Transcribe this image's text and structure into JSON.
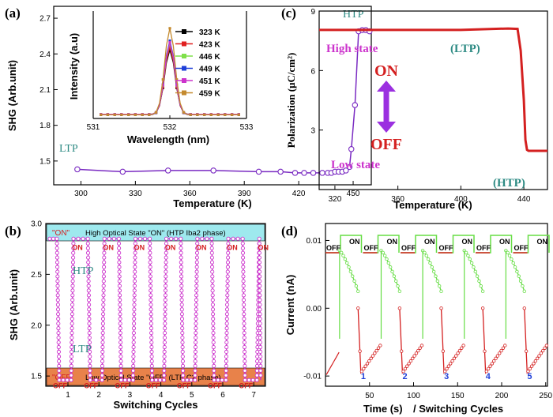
{
  "colors": {
    "ltp_htp_text": "#2e8b84",
    "magenta": "#cc33cc",
    "violet": "#7a2bc2",
    "red": "#d42020",
    "green": "#66dd44",
    "blue": "#1f3fd8",
    "banner_on": "#9ee9ee",
    "banner_off": "#e8824a"
  },
  "chart_data": [
    {
      "panel": "(a)",
      "type": "line",
      "xlabel": "Temperature (K)",
      "ylabel": "SHG (Arb.unit)",
      "xlim": [
        285,
        460
      ],
      "ylim": [
        1.3,
        2.8
      ],
      "xticks": [
        "300",
        "330",
        "360",
        "390",
        "420",
        "450"
      ],
      "yticks": [
        "1.5",
        "1.8",
        "2.1",
        "2.4",
        "2.7"
      ],
      "annotations": [
        "LTP",
        "HTP"
      ],
      "x": [
        298,
        323,
        348,
        373,
        398,
        410,
        418,
        423,
        428,
        433,
        436,
        438,
        440,
        442,
        444,
        446,
        448,
        449,
        451,
        453,
        455,
        457,
        459
      ],
      "y": [
        1.43,
        1.41,
        1.42,
        1.42,
        1.41,
        1.41,
        1.4,
        1.4,
        1.4,
        1.4,
        1.4,
        1.4,
        1.41,
        1.41,
        1.41,
        1.42,
        1.45,
        1.6,
        1.97,
        2.59,
        2.6,
        2.6,
        2.59
      ],
      "inset": {
        "type": "line",
        "xlabel": "Wavelength (nm)",
        "ylabel": "Intensity (a.u)",
        "xlim": [
          531,
          533
        ],
        "xticks": [
          "531",
          "532",
          "533"
        ],
        "series": [
          {
            "name": "323 K",
            "color": "#000000",
            "peak": 0.62
          },
          {
            "name": "423 K",
            "color": "#e02020",
            "peak": 0.65
          },
          {
            "name": "446 K",
            "color": "#7fe04a",
            "peak": 0.68
          },
          {
            "name": "449 K",
            "color": "#1f3fd8",
            "peak": 0.71
          },
          {
            "name": "451 K",
            "color": "#cc33cc",
            "peak": 0.69
          },
          {
            "name": "459 K",
            "color": "#c48a2e",
            "peak": 0.83
          }
        ]
      }
    },
    {
      "panel": "(b)",
      "type": "line",
      "xlabel": "Switching Cycles",
      "ylabel": "SHG (Arb.unit)",
      "ylim": [
        1.4,
        3.0
      ],
      "xticks": [
        "1",
        "2",
        "3",
        "4",
        "5",
        "6",
        "7"
      ],
      "yticks": [
        "1.5",
        "2.0",
        "2.5",
        "3.0"
      ],
      "banner_on_prefix": "\"ON\"",
      "banner_on_text": "High Optical State \"ON\" (HTP Iba2 phase)",
      "banner_off_prefix": "\"OFF\"",
      "banner_off_text": "Low Optical State \"OFF\" (LTP C2 phase)",
      "labels": [
        "ON",
        "OFF",
        "HTP",
        "LTP"
      ],
      "high": 2.85,
      "low": 1.46
    },
    {
      "panel": "(c)",
      "type": "line",
      "xlabel": "Temperature (K)",
      "ylabel": "Polarization (μC/cm²)",
      "xlim": [
        310,
        455
      ],
      "ylim": [
        0,
        9
      ],
      "xticks": [
        "320",
        "360",
        "400",
        "440"
      ],
      "yticks": [
        "3",
        "6",
        "9"
      ],
      "x": [
        310,
        400,
        430,
        436,
        438,
        440,
        441,
        442,
        443,
        455
      ],
      "y": [
        8.05,
        8.05,
        8.12,
        8.1,
        7.0,
        4.5,
        2.5,
        2.0,
        1.95,
        1.95
      ],
      "text_high": "High state",
      "text_on": "ON",
      "text_off": "OFF",
      "text_low": "Low state",
      "text_ltp": "(LTP)",
      "text_htp": "(HTP)"
    },
    {
      "panel": "(d)",
      "type": "line",
      "xlabel": "Time (s)",
      "xlabel2": "/ Switching Cycles",
      "ylabel": "Current (nA)",
      "xlim": [
        0,
        252
      ],
      "ylim": [
        -0.0115,
        0.0125
      ],
      "xticks": [
        "50",
        "100",
        "150",
        "200",
        "250"
      ],
      "yticks": [
        "0.01",
        "0.00",
        "-0.01"
      ],
      "cycles": [
        "1",
        "2",
        "3",
        "4",
        "5"
      ],
      "square_labels": [
        "ON",
        "OFF"
      ],
      "peak": 0.0085,
      "trough": -0.0095
    }
  ]
}
